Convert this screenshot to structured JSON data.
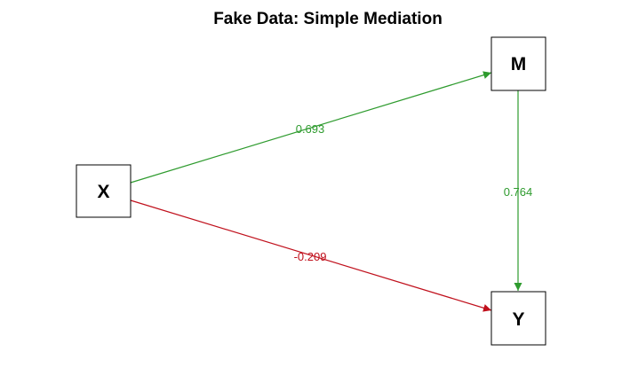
{
  "title": "Fake Data:  Simple Mediation",
  "colors": {
    "positive": "#2e9b2e",
    "negative": "#c0101c"
  },
  "nodes": {
    "x": {
      "label": "X"
    },
    "m": {
      "label": "M"
    },
    "y": {
      "label": "Y"
    }
  },
  "edges": {
    "x_to_m": {
      "from": "X",
      "to": "M",
      "coefficient": "0.693",
      "sign": "positive"
    },
    "m_to_y": {
      "from": "M",
      "to": "Y",
      "coefficient": "0.764",
      "sign": "positive"
    },
    "x_to_y": {
      "from": "X",
      "to": "Y",
      "coefficient": "-0.209",
      "sign": "negative"
    }
  }
}
